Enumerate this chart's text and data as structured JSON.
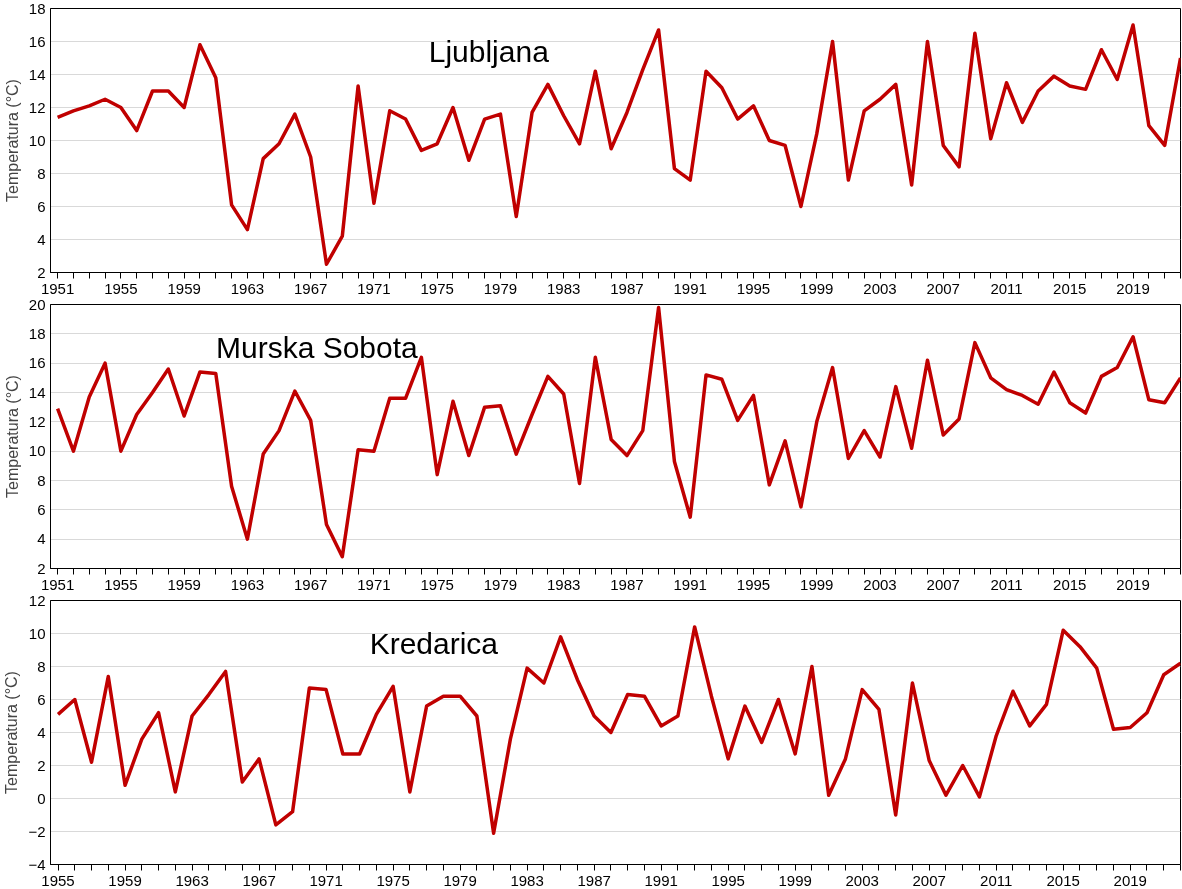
{
  "chart_data": [
    {
      "type": "line",
      "title": "Ljubljana",
      "ylabel": "Temperatura (°C)",
      "grid": "y",
      "ylim": [
        2,
        18
      ],
      "yticks": [
        2,
        4,
        6,
        8,
        10,
        12,
        14,
        16,
        18
      ],
      "categories": [
        "1951",
        null,
        null,
        null,
        "1955",
        null,
        null,
        null,
        "1959",
        null,
        null,
        null,
        "1963",
        null,
        null,
        null,
        "1967",
        null,
        null,
        null,
        "1971",
        null,
        null,
        null,
        "1975",
        null,
        null,
        null,
        "1979",
        null,
        null,
        null,
        "1983",
        null,
        null,
        null,
        "1987",
        null,
        null,
        null,
        "1991",
        null,
        null,
        null,
        "1995",
        null,
        null,
        null,
        "1999",
        null,
        null,
        null,
        "2003",
        null,
        null,
        null,
        "2007",
        null,
        null,
        null,
        "2011",
        null,
        null,
        null,
        "2015",
        null,
        null,
        null,
        "2019",
        null,
        null,
        null
      ],
      "series": [
        {
          "color": "#c00000",
          "values": [
            11.4,
            11.8,
            12.1,
            12.5,
            12.0,
            10.6,
            13.0,
            13.0,
            12.0,
            15.8,
            13.8,
            6.1,
            4.6,
            8.9,
            9.8,
            11.6,
            9.0,
            2.5,
            4.2,
            13.3,
            6.2,
            11.8,
            11.3,
            9.4,
            9.8,
            12.0,
            8.8,
            11.3,
            11.6,
            5.4,
            11.7,
            13.4,
            11.5,
            9.8,
            14.2,
            9.5,
            11.7,
            14.3,
            16.7,
            8.3,
            7.6,
            14.2,
            13.2,
            11.3,
            12.1,
            10.0,
            9.7,
            6.0,
            10.4,
            16.0,
            7.6,
            11.8,
            12.5,
            13.4,
            7.3,
            16.0,
            9.7,
            8.4,
            16.5,
            10.1,
            13.5,
            11.1,
            13.0,
            13.9,
            13.3,
            13.1,
            15.5,
            13.7,
            17.0,
            10.9,
            9.7,
            15.0
          ]
        }
      ]
    },
    {
      "type": "line",
      "title": "Murska Sobota",
      "ylabel": "Temperatura (°C)",
      "grid": "y",
      "ylim": [
        2,
        20
      ],
      "yticks": [
        2,
        4,
        6,
        8,
        10,
        12,
        14,
        16,
        18,
        20
      ],
      "categories": [
        "1951",
        null,
        null,
        null,
        "1955",
        null,
        null,
        null,
        "1959",
        null,
        null,
        null,
        "1963",
        null,
        null,
        null,
        "1967",
        null,
        null,
        null,
        "1971",
        null,
        null,
        null,
        "1975",
        null,
        null,
        null,
        "1979",
        null,
        null,
        null,
        "1983",
        null,
        null,
        null,
        "1987",
        null,
        null,
        null,
        "1991",
        null,
        null,
        null,
        "1995",
        null,
        null,
        null,
        "1999",
        null,
        null,
        null,
        "2003",
        null,
        null,
        null,
        "2007",
        null,
        null,
        null,
        "2011",
        null,
        null,
        null,
        "2015",
        null,
        null,
        null,
        "2019",
        null,
        null,
        null
      ],
      "series": [
        {
          "color": "#c00000",
          "values": [
            12.9,
            10.0,
            13.7,
            16.0,
            10.0,
            12.5,
            14.0,
            15.6,
            12.4,
            15.4,
            15.3,
            7.6,
            4.0,
            9.8,
            11.4,
            14.1,
            12.1,
            5.0,
            2.8,
            10.1,
            10.0,
            13.6,
            13.6,
            16.4,
            8.4,
            13.4,
            9.7,
            13.0,
            13.1,
            9.8,
            12.5,
            15.1,
            13.9,
            7.8,
            16.4,
            10.8,
            9.7,
            11.4,
            19.8,
            9.3,
            5.5,
            15.2,
            14.9,
            12.1,
            13.8,
            7.7,
            10.7,
            6.2,
            12.0,
            15.7,
            9.5,
            11.4,
            9.6,
            14.4,
            10.2,
            16.2,
            11.1,
            12.2,
            17.4,
            15.0,
            14.2,
            13.8,
            13.2,
            15.4,
            13.3,
            12.6,
            15.1,
            15.7,
            17.8,
            13.5,
            13.3,
            15.0
          ]
        }
      ]
    },
    {
      "type": "line",
      "title": "Kredarica",
      "ylabel": "Temperatura (°C)",
      "grid": "y",
      "ylim": [
        -4,
        12
      ],
      "yticks": [
        -4,
        -2,
        0,
        2,
        4,
        6,
        8,
        10,
        12
      ],
      "categories": [
        "1955",
        null,
        null,
        null,
        "1959",
        null,
        null,
        null,
        "1963",
        null,
        null,
        null,
        "1967",
        null,
        null,
        null,
        "1971",
        null,
        null,
        null,
        "1975",
        null,
        null,
        null,
        "1979",
        null,
        null,
        null,
        "1983",
        null,
        null,
        null,
        "1987",
        null,
        null,
        null,
        "1991",
        null,
        null,
        null,
        "1995",
        null,
        null,
        null,
        "1999",
        null,
        null,
        null,
        "2003",
        null,
        null,
        null,
        "2007",
        null,
        null,
        null,
        "2011",
        null,
        null,
        null,
        "2015",
        null,
        null,
        null,
        "2019",
        null,
        null,
        null
      ],
      "series": [
        {
          "color": "#c00000",
          "values": [
            5.1,
            6.0,
            2.2,
            7.4,
            0.8,
            3.6,
            5.2,
            0.4,
            5.0,
            6.3,
            7.7,
            1.0,
            2.4,
            -1.6,
            -0.8,
            6.7,
            6.6,
            2.7,
            2.7,
            5.1,
            6.8,
            0.4,
            5.6,
            6.2,
            6.2,
            5.0,
            -2.1,
            3.6,
            7.9,
            7.0,
            9.8,
            7.2,
            5.0,
            4.0,
            6.3,
            6.2,
            4.4,
            5.0,
            10.4,
            6.2,
            2.4,
            5.6,
            3.4,
            6.0,
            2.7,
            8.0,
            0.2,
            2.4,
            6.6,
            5.4,
            -1.0,
            7.0,
            2.3,
            0.2,
            2.0,
            0.1,
            3.8,
            6.5,
            4.4,
            5.7,
            10.2,
            9.2,
            7.9,
            4.2,
            4.3,
            5.2,
            7.5,
            8.2
          ]
        }
      ]
    }
  ]
}
